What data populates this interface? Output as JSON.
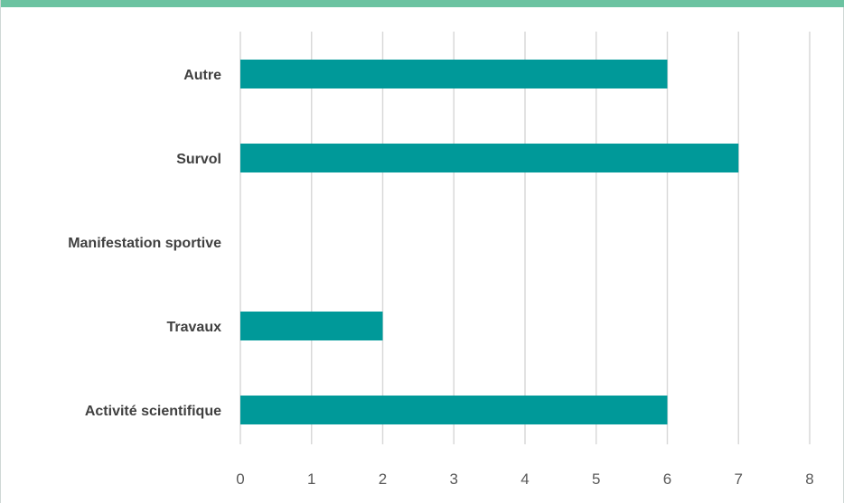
{
  "chart_data": {
    "type": "bar",
    "orientation": "horizontal",
    "categories": [
      "Autre",
      "Survol",
      "Manifestation sportive",
      "Travaux",
      "Activité scientifique"
    ],
    "values": [
      6,
      7,
      0,
      2,
      6
    ],
    "xticks": [
      "0",
      "1",
      "2",
      "3",
      "4",
      "5",
      "6",
      "7",
      "8"
    ],
    "xlim": [
      0,
      8
    ],
    "grid": true,
    "legend": "none",
    "title": "",
    "xlabel": "",
    "ylabel": ""
  },
  "colors": {
    "bar": "#009999",
    "grid": "#d9d9d9",
    "header_accent": "#6cc3a1"
  }
}
